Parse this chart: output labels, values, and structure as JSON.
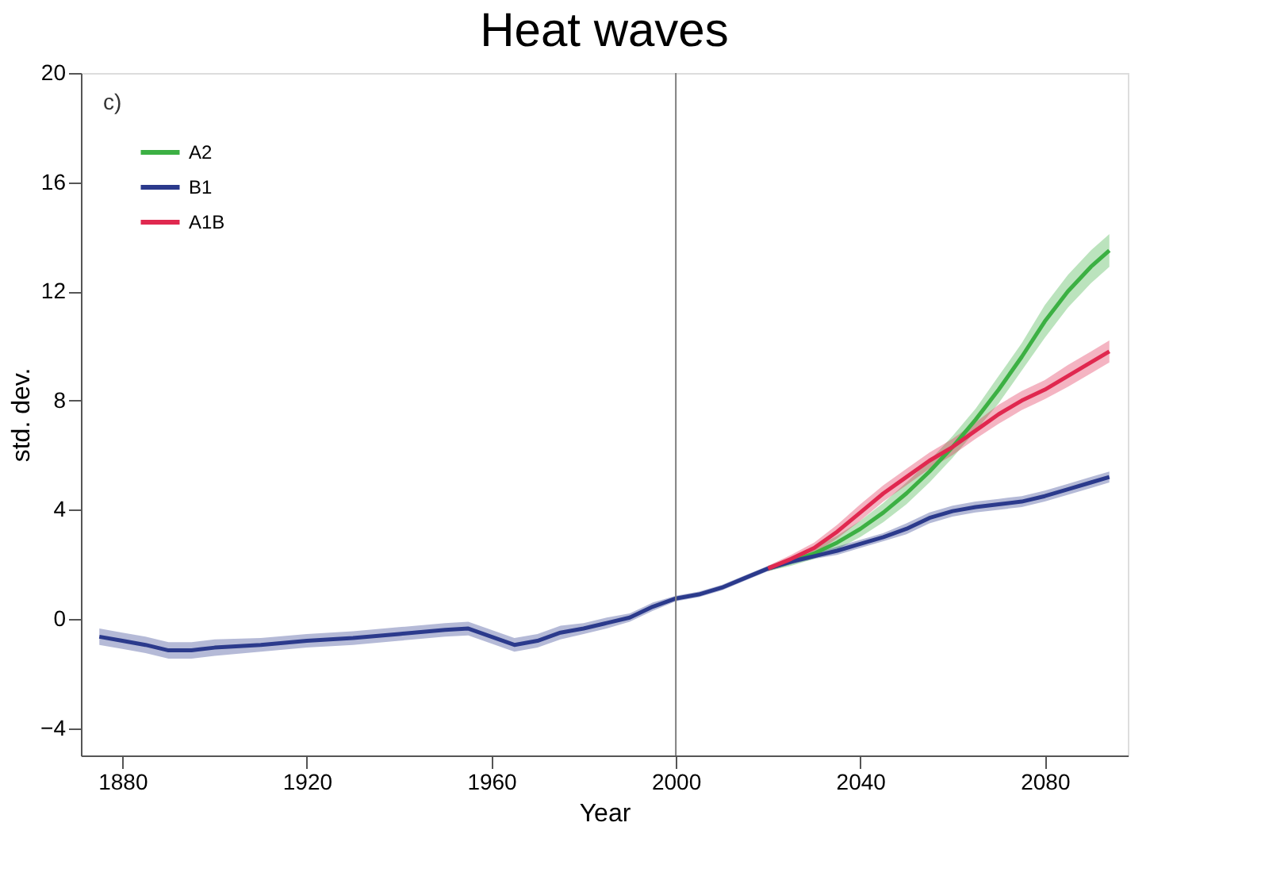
{
  "chart_data": {
    "type": "line",
    "title": "Heat waves",
    "xlabel": "Year",
    "ylabel": "std. dev.",
    "annotations": [
      "c)"
    ],
    "xlim": [
      1871,
      2098
    ],
    "xticks": [
      1880,
      1920,
      1960,
      2000,
      2040,
      2080
    ],
    "ylim": [
      -5,
      20
    ],
    "yticks": [
      -4,
      0,
      4,
      8,
      12,
      16,
      20
    ],
    "grid": false,
    "legend": "top left",
    "marker": "none",
    "line_style": "solid",
    "ref_lines": [
      {
        "axis": "x",
        "value": 2000,
        "color": "#808080"
      }
    ],
    "series": [
      {
        "name": "A2",
        "color": "#3cb043",
        "x": [
          2020,
          2025,
          2030,
          2035,
          2040,
          2045,
          2050,
          2055,
          2060,
          2065,
          2070,
          2075,
          2080,
          2085,
          2090,
          2094
        ],
        "values": [
          1.85,
          2.1,
          2.4,
          2.8,
          3.3,
          3.9,
          4.6,
          5.4,
          6.3,
          7.3,
          8.4,
          9.6,
          10.9,
          12.0,
          12.9,
          13.5
        ],
        "lower": [
          1.75,
          1.95,
          2.2,
          2.55,
          3.0,
          3.55,
          4.2,
          5.0,
          5.9,
          6.9,
          7.9,
          9.1,
          10.3,
          11.4,
          12.3,
          12.9
        ],
        "upper": [
          1.95,
          2.25,
          2.6,
          3.05,
          3.6,
          4.25,
          5.0,
          5.8,
          6.7,
          7.7,
          8.9,
          10.1,
          11.5,
          12.6,
          13.5,
          14.1
        ]
      },
      {
        "name": "B1",
        "color": "#2b3a8c",
        "x": [
          1875,
          1880,
          1885,
          1890,
          1895,
          1900,
          1910,
          1920,
          1930,
          1940,
          1950,
          1955,
          1960,
          1965,
          1970,
          1975,
          1980,
          1985,
          1990,
          1995,
          2000,
          2005,
          2010,
          2015,
          2020,
          2025,
          2030,
          2035,
          2040,
          2045,
          2050,
          2055,
          2060,
          2065,
          2070,
          2075,
          2080,
          2085,
          2090,
          2094
        ],
        "values": [
          -0.65,
          -0.8,
          -0.95,
          -1.15,
          -1.15,
          -1.05,
          -0.95,
          -0.8,
          -0.7,
          -0.55,
          -0.4,
          -0.35,
          -0.65,
          -0.95,
          -0.8,
          -0.5,
          -0.35,
          -0.15,
          0.05,
          0.45,
          0.75,
          0.9,
          1.15,
          1.5,
          1.85,
          2.1,
          2.3,
          2.5,
          2.75,
          3.0,
          3.3,
          3.7,
          3.95,
          4.1,
          4.2,
          4.3,
          4.5,
          4.75,
          5.0,
          5.2
        ],
        "lower": [
          -0.95,
          -1.1,
          -1.25,
          -1.45,
          -1.45,
          -1.35,
          -1.2,
          -1.05,
          -0.95,
          -0.8,
          -0.65,
          -0.6,
          -0.9,
          -1.2,
          -1.05,
          -0.75,
          -0.55,
          -0.35,
          -0.1,
          0.3,
          0.65,
          0.8,
          1.05,
          1.4,
          1.75,
          2.0,
          2.2,
          2.35,
          2.6,
          2.85,
          3.1,
          3.5,
          3.75,
          3.9,
          4.0,
          4.1,
          4.3,
          4.55,
          4.8,
          5.0
        ],
        "upper": [
          -0.35,
          -0.5,
          -0.65,
          -0.85,
          -0.85,
          -0.75,
          -0.7,
          -0.55,
          -0.45,
          -0.3,
          -0.15,
          -0.1,
          -0.4,
          -0.7,
          -0.55,
          -0.25,
          -0.15,
          0.05,
          0.2,
          0.6,
          0.85,
          1.0,
          1.25,
          1.6,
          1.95,
          2.2,
          2.4,
          2.65,
          2.9,
          3.15,
          3.5,
          3.9,
          4.15,
          4.3,
          4.4,
          4.5,
          4.7,
          4.95,
          5.2,
          5.4
        ]
      },
      {
        "name": "A1B",
        "color": "#e0284f",
        "x": [
          2020,
          2025,
          2030,
          2035,
          2040,
          2045,
          2050,
          2055,
          2060,
          2065,
          2070,
          2075,
          2080,
          2085,
          2090,
          2094
        ],
        "values": [
          1.85,
          2.2,
          2.6,
          3.2,
          3.9,
          4.6,
          5.2,
          5.8,
          6.3,
          6.9,
          7.5,
          8.0,
          8.4,
          8.9,
          9.4,
          9.8
        ],
        "lower": [
          1.75,
          2.05,
          2.4,
          2.95,
          3.6,
          4.3,
          4.9,
          5.5,
          6.0,
          6.6,
          7.15,
          7.65,
          8.05,
          8.5,
          9.0,
          9.4
        ],
        "upper": [
          1.95,
          2.35,
          2.8,
          3.45,
          4.2,
          4.9,
          5.5,
          6.1,
          6.6,
          7.2,
          7.85,
          8.35,
          8.75,
          9.3,
          9.8,
          10.2
        ]
      }
    ]
  }
}
